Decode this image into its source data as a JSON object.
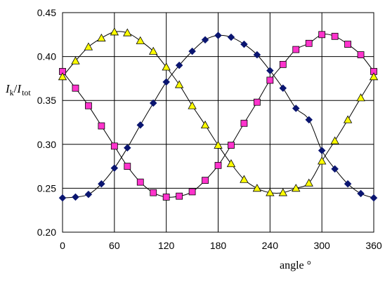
{
  "chart_data": {
    "type": "scatter",
    "xlabel": "angle °",
    "ylabel": {
      "main": "I",
      "sub1": "k",
      "sep": "/",
      "main2": "I",
      "sub2": "tot"
    },
    "xlim": [
      0,
      360
    ],
    "ylim": [
      0.2,
      0.45
    ],
    "x_ticks": [
      0,
      60,
      120,
      180,
      240,
      300,
      360
    ],
    "x_tick_labels": [
      "0",
      "60",
      "120",
      "180",
      "240",
      "300",
      "360"
    ],
    "y_ticks": [
      0.2,
      0.25,
      0.3,
      0.35,
      0.4,
      0.45
    ],
    "y_tick_labels": [
      "0.20",
      "0.25",
      "0.30",
      "0.35",
      "0.40",
      "0.45"
    ],
    "grid": true,
    "legend": "none",
    "series": [
      {
        "marker": "diamond",
        "color": "#0a1570",
        "x": [
          0,
          15,
          30,
          45,
          60,
          75,
          90,
          105,
          120,
          135,
          150,
          165,
          180,
          195,
          210,
          225,
          240,
          255,
          270,
          285,
          300,
          315,
          330,
          345,
          360
        ],
        "y": [
          0.239,
          0.24,
          0.243,
          0.255,
          0.273,
          0.296,
          0.322,
          0.347,
          0.371,
          0.39,
          0.406,
          0.419,
          0.424,
          0.422,
          0.414,
          0.402,
          0.384,
          0.364,
          0.341,
          0.328,
          0.293,
          0.272,
          0.255,
          0.244,
          0.239
        ]
      },
      {
        "marker": "square",
        "color": "#ff33cc",
        "x": [
          0,
          15,
          30,
          45,
          60,
          75,
          90,
          105,
          120,
          135,
          150,
          165,
          180,
          195,
          210,
          225,
          240,
          255,
          270,
          285,
          300,
          315,
          330,
          345,
          360
        ],
        "y": [
          0.383,
          0.364,
          0.344,
          0.321,
          0.298,
          0.275,
          0.257,
          0.245,
          0.24,
          0.241,
          0.246,
          0.259,
          0.276,
          0.299,
          0.324,
          0.348,
          0.373,
          0.391,
          0.408,
          0.415,
          0.425,
          0.423,
          0.414,
          0.402,
          0.383
        ]
      },
      {
        "marker": "triangle",
        "color": "#ffff00",
        "x": [
          0,
          15,
          30,
          45,
          60,
          75,
          90,
          105,
          120,
          135,
          150,
          165,
          180,
          195,
          210,
          225,
          240,
          255,
          270,
          285,
          300,
          315,
          330,
          345,
          360
        ],
        "y": [
          0.377,
          0.395,
          0.411,
          0.421,
          0.428,
          0.427,
          0.418,
          0.406,
          0.388,
          0.368,
          0.344,
          0.322,
          0.299,
          0.278,
          0.26,
          0.25,
          0.245,
          0.245,
          0.25,
          0.256,
          0.281,
          0.304,
          0.328,
          0.353,
          0.377
        ]
      }
    ]
  }
}
